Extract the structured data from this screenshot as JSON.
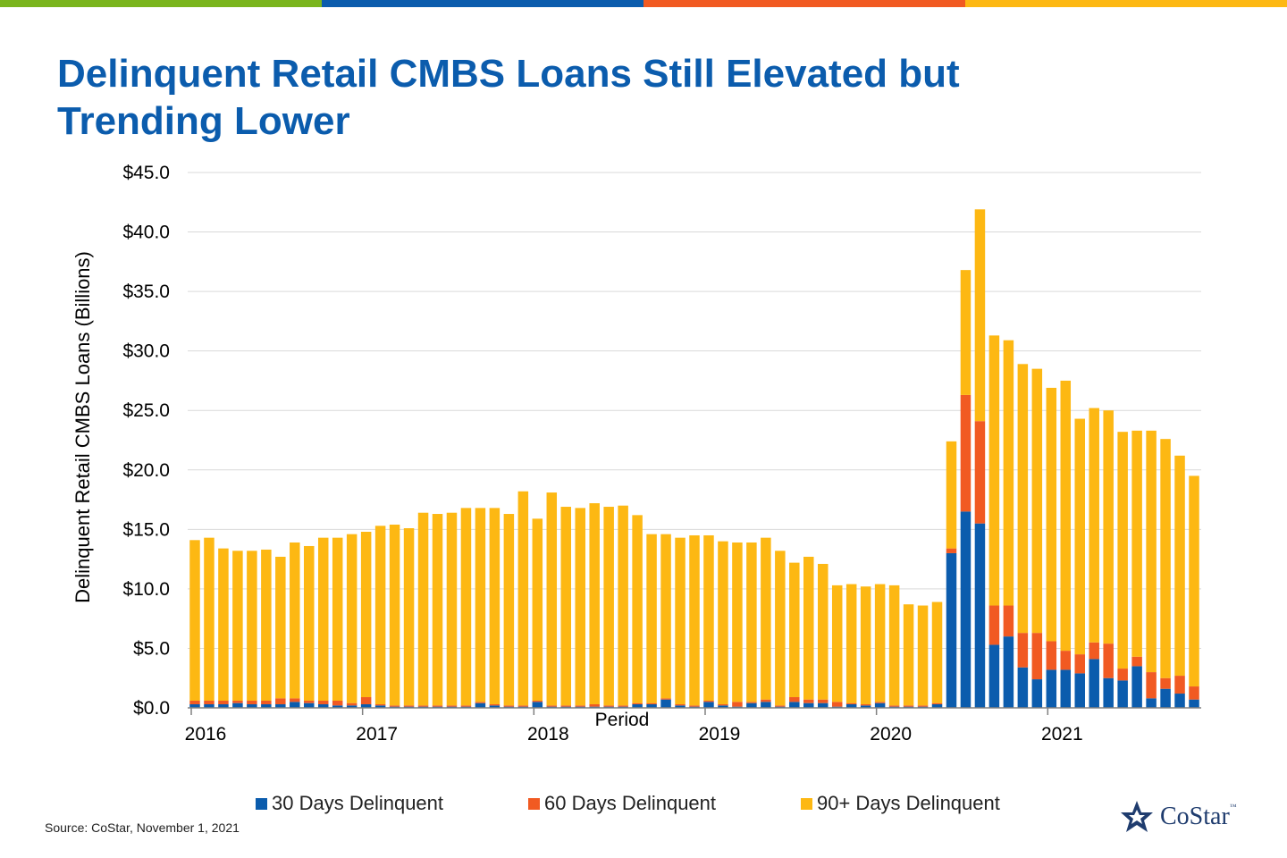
{
  "brand_bar_colors": [
    "#7AB51D",
    "#0B5CAD",
    "#F15A22",
    "#FDB813"
  ],
  "title": {
    "line1": "Delinquent Retail CMBS Loans Still Elevated but",
    "line2": "Trending Lower"
  },
  "source": "Source: CoStar, November 1, 2021",
  "logo": {
    "text": "CoStar",
    "tm": "™",
    "icon": "costar-star-icon"
  },
  "chart_data": {
    "type": "bar",
    "stacked": true,
    "ylabel": "Delinquent Retail CMBS Loans (Billions)",
    "xlabel": "Period",
    "ylim": [
      0,
      45
    ],
    "yticks": [
      {
        "value": 0,
        "label": "$0.0"
      },
      {
        "value": 5,
        "label": "$5.0"
      },
      {
        "value": 10,
        "label": "$10.0"
      },
      {
        "value": 15,
        "label": "$15.0"
      },
      {
        "value": 20,
        "label": "$20.0"
      },
      {
        "value": 25,
        "label": "$25.0"
      },
      {
        "value": 30,
        "label": "$30.0"
      },
      {
        "value": 35,
        "label": "$35.0"
      },
      {
        "value": 40,
        "label": "$40.0"
      },
      {
        "value": 45,
        "label": "$45.0"
      }
    ],
    "grid": true,
    "legend_position": "bottom",
    "x_start": "2016-01",
    "year_labels": [
      {
        "month_index": 0,
        "label": "2016"
      },
      {
        "month_index": 12,
        "label": "2017"
      },
      {
        "month_index": 24,
        "label": "2018"
      },
      {
        "month_index": 36,
        "label": "2019"
      },
      {
        "month_index": 48,
        "label": "2020"
      },
      {
        "month_index": 60,
        "label": "2021"
      }
    ],
    "series": [
      {
        "name": "30 Days Delinquent",
        "color": "#0B5CAD",
        "values": [
          0.3,
          0.3,
          0.3,
          0.4,
          0.3,
          0.3,
          0.3,
          0.5,
          0.4,
          0.3,
          0.2,
          0.2,
          0.3,
          0.2,
          0.1,
          0.1,
          0.1,
          0.1,
          0.1,
          0.1,
          0.4,
          0.2,
          0.1,
          0.1,
          0.5,
          0.1,
          0.1,
          0.1,
          0.1,
          0.1,
          0.1,
          0.3,
          0.3,
          0.7,
          0.2,
          0.1,
          0.5,
          0.2,
          0.1,
          0.4,
          0.5,
          0.1,
          0.5,
          0.4,
          0.4,
          0.1,
          0.3,
          0.2,
          0.4,
          0.1,
          0.1,
          0.1,
          0.3,
          13.0,
          16.5,
          15.5,
          5.3,
          6.0,
          3.4,
          2.4,
          3.2,
          3.2,
          2.9,
          4.1,
          2.5,
          2.3,
          3.5,
          0.8,
          1.6,
          1.2,
          0.7
        ]
      },
      {
        "name": "60 Days Delinquent",
        "color": "#F15A22",
        "values": [
          0.3,
          0.3,
          0.3,
          0.2,
          0.3,
          0.3,
          0.5,
          0.3,
          0.2,
          0.3,
          0.4,
          0.2,
          0.6,
          0.1,
          0.1,
          0.1,
          0.1,
          0.1,
          0.1,
          0.1,
          0.1,
          0.1,
          0.1,
          0.1,
          0.1,
          0.1,
          0.1,
          0.1,
          0.2,
          0.1,
          0.1,
          0.1,
          0.1,
          0.1,
          0.1,
          0.1,
          0.1,
          0.1,
          0.4,
          0.1,
          0.2,
          0.1,
          0.4,
          0.3,
          0.3,
          0.4,
          0.1,
          0.1,
          0.1,
          0.1,
          0.1,
          0.1,
          0.1,
          0.4,
          9.8,
          8.6,
          3.3,
          2.6,
          2.9,
          3.9,
          2.4,
          1.6,
          1.6,
          1.4,
          2.9,
          1.0,
          0.8,
          2.2,
          0.9,
          1.5,
          1.1
        ]
      },
      {
        "name": "90+ Days Delinquent",
        "color": "#FDB813",
        "values": [
          13.5,
          13.7,
          12.8,
          12.6,
          12.6,
          12.7,
          11.9,
          13.1,
          13.0,
          13.7,
          13.7,
          14.2,
          13.9,
          15.0,
          15.2,
          14.9,
          16.2,
          16.1,
          16.2,
          16.6,
          16.3,
          16.5,
          16.1,
          18.0,
          15.3,
          17.9,
          16.7,
          16.6,
          16.9,
          16.7,
          16.8,
          15.8,
          14.2,
          13.8,
          14.0,
          14.3,
          13.9,
          13.7,
          13.4,
          13.4,
          13.6,
          13.0,
          11.3,
          12.0,
          11.4,
          9.8,
          10.0,
          9.9,
          9.9,
          10.1,
          8.5,
          8.4,
          8.5,
          9.0,
          10.5,
          17.8,
          22.7,
          22.3,
          22.6,
          22.2,
          21.3,
          22.7,
          19.8,
          19.7,
          19.6,
          19.9,
          19.0,
          20.3,
          20.1,
          18.5,
          17.7
        ]
      }
    ]
  }
}
